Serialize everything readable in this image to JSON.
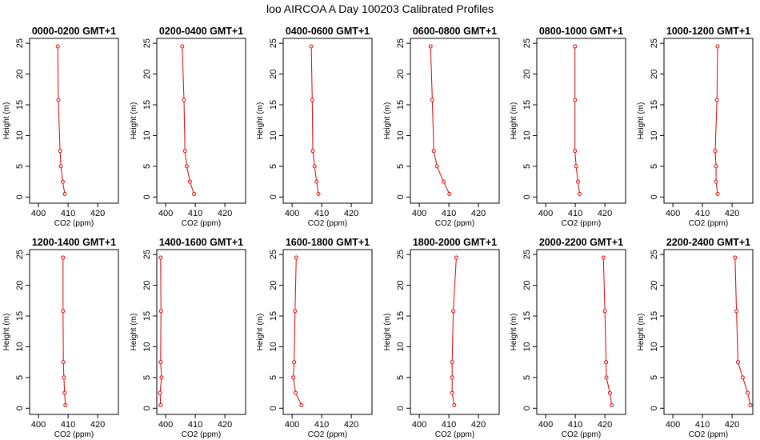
{
  "title": "loo AIRCOA A  Day 100203  Calibrated Profiles",
  "colors": {
    "series": "#dd0000",
    "axis": "#000000",
    "background": "#ffffff"
  },
  "chart_data": [
    {
      "type": "line",
      "title": "0000-0200 GMT+1",
      "xlabel": "CO2 (ppm)",
      "ylabel": "Height (m)",
      "xlim": [
        397,
        427
      ],
      "ylim": [
        -1,
        25.8
      ],
      "xticks": [
        400,
        410,
        420
      ],
      "yticks": [
        0,
        5,
        10,
        15,
        20,
        25
      ],
      "series": [
        {
          "x": [
            408.9,
            408.2,
            407.6,
            407.3,
            406.7,
            406.5
          ],
          "y": [
            0.5,
            2.5,
            5,
            7.5,
            15.8,
            24.5
          ]
        }
      ]
    },
    {
      "type": "line",
      "title": "0200-0400 GMT+1",
      "xlabel": "CO2 (ppm)",
      "ylabel": "Height (m)",
      "xlim": [
        397,
        427
      ],
      "ylim": [
        -1,
        25.8
      ],
      "xticks": [
        400,
        410,
        420
      ],
      "yticks": [
        0,
        5,
        10,
        15,
        20,
        25
      ],
      "series": [
        {
          "x": [
            409.6,
            408.2,
            407.1,
            406.5,
            406.2,
            405.6
          ],
          "y": [
            0.5,
            2.5,
            5,
            7.5,
            15.8,
            24.5
          ]
        }
      ]
    },
    {
      "type": "line",
      "title": "0400-0600 GMT+1",
      "xlabel": "CO2 (ppm)",
      "ylabel": "Height (m)",
      "xlim": [
        397,
        427
      ],
      "ylim": [
        -1,
        25.8
      ],
      "xticks": [
        400,
        410,
        420
      ],
      "yticks": [
        0,
        5,
        10,
        15,
        20,
        25
      ],
      "series": [
        {
          "x": [
            408.9,
            408.3,
            407.6,
            407.0,
            406.8,
            406.5
          ],
          "y": [
            0.5,
            2.5,
            5,
            7.5,
            15.8,
            24.5
          ]
        }
      ]
    },
    {
      "type": "line",
      "title": "0600-0800 GMT+1",
      "xlabel": "CO2 (ppm)",
      "ylabel": "Height (m)",
      "xlim": [
        397,
        427
      ],
      "ylim": [
        -1,
        25.8
      ],
      "xticks": [
        400,
        410,
        420
      ],
      "yticks": [
        0,
        5,
        10,
        15,
        20,
        25
      ],
      "series": [
        {
          "x": [
            410.2,
            408.2,
            406.0,
            404.9,
            404.4,
            403.8
          ],
          "y": [
            0.5,
            2.5,
            5,
            7.5,
            15.8,
            24.5
          ]
        }
      ]
    },
    {
      "type": "line",
      "title": "0800-1000 GMT+1",
      "xlabel": "CO2 (ppm)",
      "ylabel": "Height (m)",
      "xlim": [
        397,
        427
      ],
      "ylim": [
        -1,
        25.8
      ],
      "xticks": [
        400,
        410,
        420
      ],
      "yticks": [
        0,
        5,
        10,
        15,
        20,
        25
      ],
      "series": [
        {
          "x": [
            411.5,
            410.9,
            410.3,
            409.9,
            409.9,
            409.9
          ],
          "y": [
            0.5,
            2.5,
            5,
            7.5,
            15.8,
            24.5
          ]
        }
      ]
    },
    {
      "type": "line",
      "title": "1000-1200 GMT+1",
      "xlabel": "CO2 (ppm)",
      "ylabel": "Height (m)",
      "xlim": [
        397,
        427
      ],
      "ylim": [
        -1,
        25.8
      ],
      "xticks": [
        400,
        410,
        420
      ],
      "yticks": [
        0,
        5,
        10,
        15,
        20,
        25
      ],
      "series": [
        {
          "x": [
            415.1,
            414.6,
            414.6,
            414.3,
            414.9,
            415.1
          ],
          "y": [
            0.5,
            2.5,
            5,
            7.5,
            15.8,
            24.5
          ]
        }
      ]
    },
    {
      "type": "line",
      "title": "1200-1400 GMT+1",
      "xlabel": "CO2 (ppm)",
      "ylabel": "Height (m)",
      "xlim": [
        397,
        427
      ],
      "ylim": [
        -1,
        25.8
      ],
      "xticks": [
        400,
        410,
        420
      ],
      "yticks": [
        0,
        5,
        10,
        15,
        20,
        25
      ],
      "series": [
        {
          "x": [
            409.1,
            408.8,
            408.6,
            408.4,
            408.3,
            408.3
          ],
          "y": [
            0.5,
            2.5,
            5,
            7.5,
            15.8,
            24.5
          ]
        }
      ]
    },
    {
      "type": "line",
      "title": "1400-1600 GMT+1",
      "xlabel": "CO2 (ppm)",
      "ylabel": "Height (m)",
      "xlim": [
        397,
        427
      ],
      "ylim": [
        -1,
        25.8
      ],
      "xticks": [
        400,
        410,
        420
      ],
      "yticks": [
        0,
        5,
        10,
        15,
        20,
        25
      ],
      "series": [
        {
          "x": [
            398.3,
            398.1,
            398.6,
            398.3,
            398.4,
            398.3
          ],
          "y": [
            0.5,
            2.5,
            5,
            7.5,
            15.8,
            24.5
          ]
        }
      ]
    },
    {
      "type": "line",
      "title": "1600-1800 GMT+1",
      "xlabel": "CO2 (ppm)",
      "ylabel": "Height (m)",
      "xlim": [
        397,
        427
      ],
      "ylim": [
        -1,
        25.8
      ],
      "xticks": [
        400,
        410,
        420
      ],
      "yticks": [
        0,
        5,
        10,
        15,
        20,
        25
      ],
      "series": [
        {
          "x": [
            403.2,
            401.2,
            400.4,
            400.7,
            401.0,
            401.4
          ],
          "y": [
            0.5,
            2.5,
            5,
            7.5,
            15.8,
            24.5
          ]
        }
      ]
    },
    {
      "type": "line",
      "title": "1800-2000 GMT+1",
      "xlabel": "CO2 (ppm)",
      "ylabel": "Height (m)",
      "xlim": [
        397,
        427
      ],
      "ylim": [
        -1,
        25.8
      ],
      "xticks": [
        400,
        410,
        420
      ],
      "yticks": [
        0,
        5,
        10,
        15,
        20,
        25
      ],
      "series": [
        {
          "x": [
            411.8,
            411.1,
            411.1,
            411.1,
            411.5,
            412.5
          ],
          "y": [
            0.5,
            2.5,
            5,
            7.5,
            15.8,
            24.5
          ]
        }
      ]
    },
    {
      "type": "line",
      "title": "2000-2200 GMT+1",
      "xlabel": "CO2 (ppm)",
      "ylabel": "Height (m)",
      "xlim": [
        397,
        427
      ],
      "ylim": [
        -1,
        25.8
      ],
      "xticks": [
        400,
        410,
        420
      ],
      "yticks": [
        0,
        5,
        10,
        15,
        20,
        25
      ],
      "series": [
        {
          "x": [
            422.3,
            421.7,
            420.5,
            420.4,
            420.0,
            419.5
          ],
          "y": [
            0.5,
            2.5,
            5,
            7.5,
            15.8,
            24.5
          ]
        }
      ]
    },
    {
      "type": "line",
      "title": "2200-2400 GMT+1",
      "xlabel": "CO2 (ppm)",
      "ylabel": "Height (m)",
      "xlim": [
        397,
        427
      ],
      "ylim": [
        -1,
        25.8
      ],
      "xticks": [
        400,
        410,
        420
      ],
      "yticks": [
        0,
        5,
        10,
        15,
        20,
        25
      ],
      "series": [
        {
          "x": [
            426.2,
            425.3,
            423.6,
            422.0,
            421.5,
            421.0
          ],
          "y": [
            0.5,
            2.5,
            5,
            7.5,
            15.8,
            24.5
          ]
        }
      ]
    }
  ]
}
